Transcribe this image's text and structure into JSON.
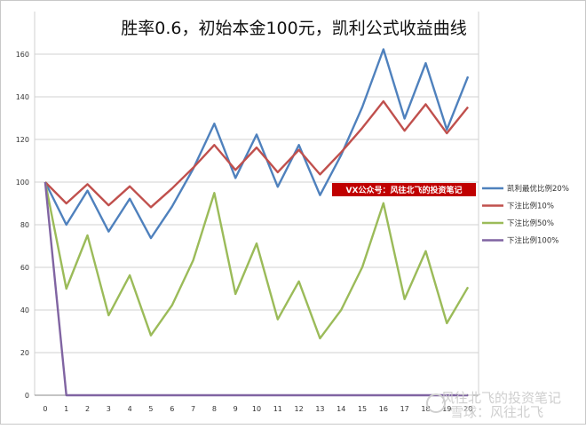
{
  "chart_data": {
    "type": "line",
    "title": "胜率0.6，初始本金100元，凯利公式收益曲线",
    "x": [
      0,
      1,
      2,
      3,
      4,
      5,
      6,
      7,
      8,
      9,
      10,
      11,
      12,
      13,
      14,
      15,
      16,
      17,
      18,
      19,
      20
    ],
    "ylim": [
      0,
      180
    ],
    "yticks": [
      0,
      20,
      40,
      60,
      80,
      100,
      120,
      140,
      160
    ],
    "grid": true,
    "legend_position": "right",
    "series": [
      {
        "name": "凯利最优比例20%",
        "color": "#4f81bd",
        "values": [
          100,
          80,
          96,
          76.8,
          92.2,
          73.7,
          88.5,
          106.2,
          127.4,
          101.9,
          122.3,
          97.8,
          117.4,
          93.9,
          112.7,
          135.2,
          162.3,
          129.8,
          155.8,
          124.6,
          149.5
        ]
      },
      {
        "name": "下注比例10%",
        "color": "#c0504d",
        "values": [
          100,
          90,
          99,
          89.1,
          98,
          88.2,
          97,
          106.7,
          117.4,
          105.7,
          116.2,
          104.6,
          115.1,
          103.6,
          114,
          125.4,
          137.9,
          124.1,
          136.5,
          122.9,
          135.2
        ]
      },
      {
        "name": "下注比例50%",
        "color": "#9bbb59",
        "values": [
          100,
          50,
          75,
          37.5,
          56.3,
          28.1,
          42.2,
          63.3,
          94.9,
          47.5,
          71.2,
          35.6,
          53.4,
          26.7,
          40,
          60.1,
          90.1,
          45.1,
          67.6,
          33.8,
          50.7
        ]
      },
      {
        "name": "下注比例100%",
        "color": "#8064a2",
        "values": [
          100,
          0,
          0,
          0,
          0,
          0,
          0,
          0,
          0,
          0,
          0,
          0,
          0,
          0,
          0,
          0,
          0,
          0,
          0,
          0,
          0
        ]
      }
    ]
  },
  "banner": {
    "text": "VX公众号：风往北飞的投资笔记",
    "color": "#c00000"
  },
  "watermark": {
    "text": "风往北飞的投资笔记",
    "text2": "雪球：风往北飞"
  }
}
